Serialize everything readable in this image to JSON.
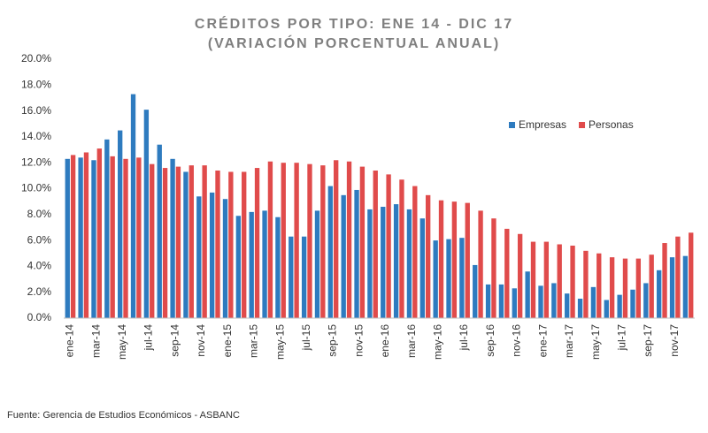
{
  "chart_data": {
    "type": "bar",
    "title": "CRÉDITOS POR TIPO: ENE 14 - DIC 17",
    "subtitle": "(VARIACIÓN PORCENTUAL ANUAL)",
    "source": "Fuente: Gerencia de Estudios Económicos - ASBANC",
    "categories": [
      "ene-14",
      null,
      "mar-14",
      null,
      "may-14",
      null,
      "jul-14",
      null,
      "sep-14",
      null,
      "nov-14",
      null,
      "ene-15",
      null,
      "mar-15",
      null,
      "may-15",
      null,
      "jul-15",
      null,
      "sep-15",
      null,
      "nov-15",
      null,
      "ene-16",
      null,
      "mar-16",
      null,
      "may-16",
      null,
      "jul-16",
      null,
      "sep-16",
      null,
      "nov-16",
      null,
      "ene-17",
      null,
      "mar-17",
      null,
      "may-17",
      null,
      "jul-17",
      null,
      "sep-17",
      null,
      "nov-17",
      null
    ],
    "series": [
      {
        "name": "Empresas",
        "color": "#2e7bbf",
        "values": [
          12.3,
          12.4,
          12.2,
          13.8,
          14.5,
          17.3,
          16.1,
          13.4,
          12.3,
          11.3,
          9.4,
          9.7,
          9.2,
          7.9,
          8.2,
          8.3,
          7.8,
          6.3,
          6.3,
          8.3,
          10.2,
          9.5,
          9.9,
          8.4,
          8.6,
          8.8,
          8.4,
          7.7,
          6.0,
          6.1,
          6.2,
          4.1,
          2.6,
          2.6,
          2.3,
          3.6,
          2.5,
          2.7,
          1.9,
          1.5,
          2.4,
          1.4,
          1.8,
          2.2,
          2.7,
          3.7,
          4.7,
          4.8
        ]
      },
      {
        "name": "Personas",
        "color": "#e04b4b",
        "values": [
          12.6,
          12.8,
          13.1,
          12.5,
          12.3,
          12.4,
          11.9,
          11.6,
          11.7,
          11.8,
          11.8,
          11.4,
          11.3,
          11.3,
          11.6,
          12.1,
          12.0,
          12.0,
          11.9,
          11.8,
          12.2,
          12.1,
          11.7,
          11.4,
          11.1,
          10.7,
          10.2,
          9.5,
          9.1,
          9.0,
          8.9,
          8.3,
          7.7,
          6.9,
          6.5,
          5.9,
          5.9,
          5.7,
          5.6,
          5.2,
          5.0,
          4.7,
          4.6,
          4.6,
          4.9,
          5.8,
          6.3,
          6.6
        ]
      }
    ],
    "ylim": [
      0,
      20
    ],
    "yticks": [
      {
        "value": 0,
        "label": "0.0%"
      },
      {
        "value": 2,
        "label": "2.0%"
      },
      {
        "value": 4,
        "label": "4.0%"
      },
      {
        "value": 6,
        "label": "6.0%"
      },
      {
        "value": 8,
        "label": "8.0%"
      },
      {
        "value": 10,
        "label": "10.0%"
      },
      {
        "value": 12,
        "label": "12.0%"
      },
      {
        "value": 14,
        "label": "14.0%"
      },
      {
        "value": 16,
        "label": "16.0%"
      },
      {
        "value": 18,
        "label": "18.0%"
      },
      {
        "value": 20,
        "label": "20.0%"
      }
    ],
    "grid": false
  }
}
